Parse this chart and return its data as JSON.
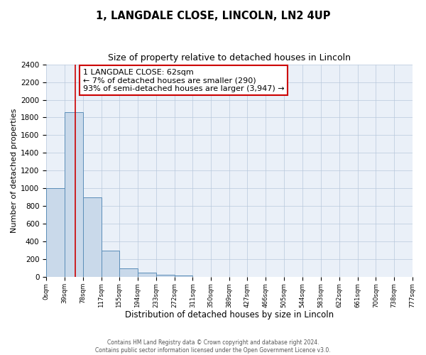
{
  "title": "1, LANGDALE CLOSE, LINCOLN, LN2 4UP",
  "subtitle": "Size of property relative to detached houses in Lincoln",
  "xlabel": "Distribution of detached houses by size in Lincoln",
  "ylabel": "Number of detached properties",
  "bin_edges": [
    0,
    39,
    78,
    117,
    155,
    194,
    233,
    272,
    311,
    350,
    389,
    427,
    466,
    505,
    544,
    583,
    622,
    661,
    700,
    738,
    777
  ],
  "bin_counts": [
    1000,
    1860,
    900,
    300,
    100,
    50,
    25,
    15,
    0,
    0,
    0,
    0,
    0,
    0,
    0,
    0,
    0,
    0,
    0,
    0
  ],
  "bar_facecolor": "#c9d9ea",
  "bar_edgecolor": "#5b8db8",
  "property_x": 62,
  "property_line_color": "#cc0000",
  "annotation_line1": "1 LANGDALE CLOSE: 62sqm",
  "annotation_line2": "← 7% of detached houses are smaller (290)",
  "annotation_line3": "93% of semi-detached houses are larger (3,947) →",
  "annotation_box_color": "#cc0000",
  "annotation_bg_color": "#ffffff",
  "ylim": [
    0,
    2400
  ],
  "xlim": [
    0,
    777
  ],
  "background_color": "#eaf0f8",
  "grid_color": "#b8c8dc",
  "yticks": [
    0,
    200,
    400,
    600,
    800,
    1000,
    1200,
    1400,
    1600,
    1800,
    2000,
    2200,
    2400
  ],
  "footer_line1": "Contains HM Land Registry data © Crown copyright and database right 2024.",
  "footer_line2": "Contains public sector information licensed under the Open Government Licence v3.0."
}
